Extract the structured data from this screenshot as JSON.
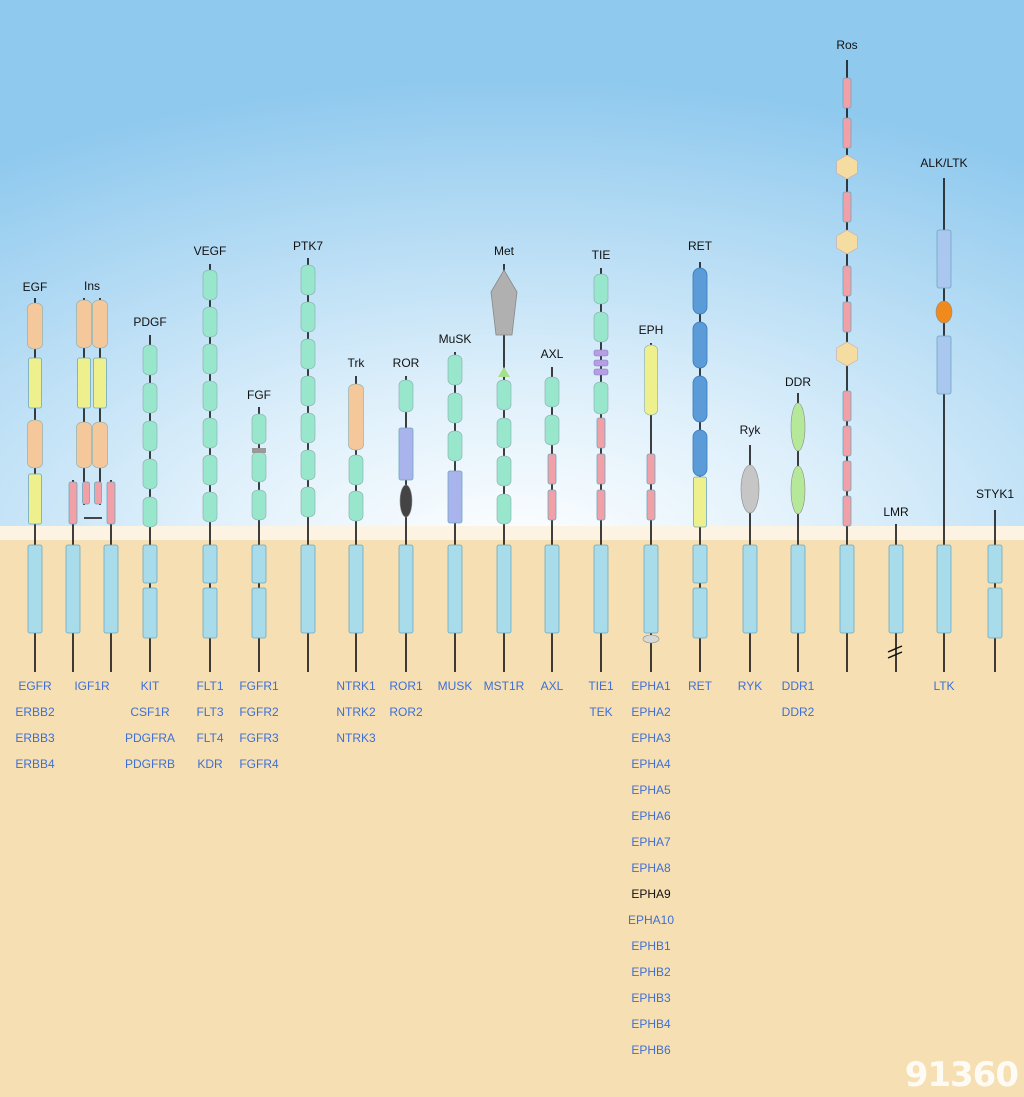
{
  "families": [
    {
      "id": "egf",
      "title": "EGF",
      "genes": [
        "EGFR",
        "ERBB2",
        "ERBB3",
        "ERBB4"
      ]
    },
    {
      "id": "ins",
      "title": "Ins",
      "genes": [
        "IGF1R"
      ]
    },
    {
      "id": "pdgf",
      "title": "PDGF",
      "genes": [
        "KIT",
        "CSF1R",
        "PDGFRA",
        "PDGFRB"
      ]
    },
    {
      "id": "vegf",
      "title": "VEGF",
      "genes": [
        "FLT1",
        "FLT3",
        "FLT4",
        "KDR"
      ]
    },
    {
      "id": "fgf",
      "title": "FGF",
      "genes": [
        "FGFR1",
        "FGFR2",
        "FGFR3",
        "FGFR4"
      ]
    },
    {
      "id": "ptk7",
      "title": "PTK7",
      "genes": []
    },
    {
      "id": "trk",
      "title": "Trk",
      "genes": [
        "NTRK1",
        "NTRK2",
        "NTRK3"
      ]
    },
    {
      "id": "ror",
      "title": "ROR",
      "genes": [
        "ROR1",
        "ROR2"
      ]
    },
    {
      "id": "musk",
      "title": "MuSK",
      "genes": [
        "MUSK"
      ]
    },
    {
      "id": "met",
      "title": "Met",
      "genes": [
        "MST1R"
      ]
    },
    {
      "id": "axl",
      "title": "AXL",
      "genes": [
        "AXL"
      ]
    },
    {
      "id": "tie",
      "title": "TIE",
      "genes": [
        "TIE1",
        "TEK"
      ]
    },
    {
      "id": "eph",
      "title": "EPH",
      "genes": [
        "EPHA1",
        "EPHA2",
        "EPHA3",
        "EPHA4",
        "EPHA5",
        "EPHA6",
        "EPHA7",
        "EPHA8",
        "EPHA9",
        "EPHA10",
        "EPHB1",
        "EPHB2",
        "EPHB3",
        "EPHB4",
        "EPHB6"
      ]
    },
    {
      "id": "ret",
      "title": "RET",
      "genes": [
        "RET"
      ]
    },
    {
      "id": "ryk",
      "title": "Ryk",
      "genes": [
        "RYK"
      ]
    },
    {
      "id": "ddr",
      "title": "DDR",
      "genes": [
        "DDR1",
        "DDR2"
      ]
    },
    {
      "id": "ros",
      "title": "Ros",
      "genes": []
    },
    {
      "id": "lmr",
      "title": "LMR",
      "genes": []
    },
    {
      "id": "alk",
      "title": "ALK/LTK",
      "genes": [
        "LTK"
      ]
    },
    {
      "id": "styk1",
      "title": "STYK1",
      "genes": []
    }
  ],
  "highlighted_gene": "EPHA9",
  "watermark": "91360",
  "colors": {
    "sky_top": "#8fc9ee",
    "sky_mid": "#dff0fb",
    "membrane": "#fdf3e2",
    "cytoplasm": "#f6e0b3",
    "kinase": "#a8dcea",
    "ig_domain": "#98e6cc",
    "cysteine_rich": "#f4c89a",
    "leucine_rich": "#eef08e",
    "fibronectin": "#f0a0a6",
    "gene_label": "#3d6fd6",
    "cadherin": "#5b9bd8",
    "frizzled": "#a9b3ec"
  }
}
